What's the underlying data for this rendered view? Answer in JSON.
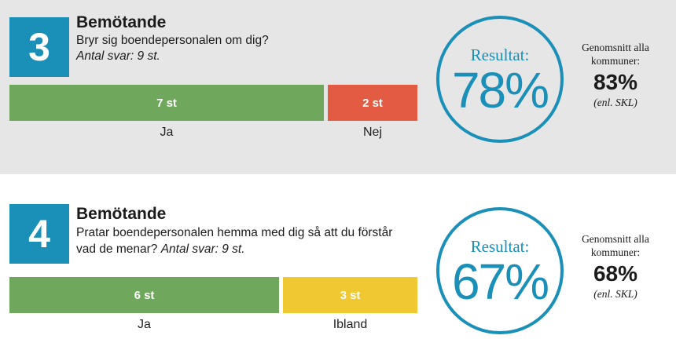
{
  "blocks": [
    {
      "number": "3",
      "heading": "Bemötande",
      "question": "Bryr sig boendepersonalen om dig?",
      "count_text": "Antal svar: 9 st.",
      "result_label": "Resultat:",
      "result_value": "78%",
      "avg_title": "Genomsnitt alla kommuner:",
      "avg_value": "83%",
      "avg_source": "(enl. SKL)",
      "bars": [
        {
          "label": "Ja",
          "value_text": "7 st",
          "color": "#6fa75c"
        },
        {
          "label": "Nej",
          "value_text": "2 st",
          "color": "#e45b43"
        }
      ]
    },
    {
      "number": "4",
      "heading": "Bemötande",
      "question_line1": "Pratar boendepersonalen hemma med dig så att du förstår",
      "question_line2": "vad de menar?",
      "count_text": "Antal svar: 9 st.",
      "result_label": "Resultat:",
      "result_value": "67%",
      "avg_title": "Genomsnitt alla kommuner:",
      "avg_value": "68%",
      "avg_source": "(enl. SKL)",
      "bars": [
        {
          "label": "Ja",
          "value_text": "6 st",
          "color": "#6fa75c"
        },
        {
          "label": "Ibland",
          "value_text": "3 st",
          "color": "#f0c832"
        }
      ]
    }
  ],
  "chart_data": [
    {
      "type": "bar",
      "title": "Bemötande",
      "orientation": "horizontal-stacked",
      "categories": [
        "Ja",
        "Nej"
      ],
      "values": [
        7,
        2
      ],
      "total": 9,
      "result_percent": 78,
      "average_percent": 83
    },
    {
      "type": "bar",
      "title": "Bemötande",
      "orientation": "horizontal-stacked",
      "categories": [
        "Ja",
        "Ibland"
      ],
      "values": [
        6,
        3
      ],
      "total": 9,
      "result_percent": 67,
      "average_percent": 68
    }
  ]
}
